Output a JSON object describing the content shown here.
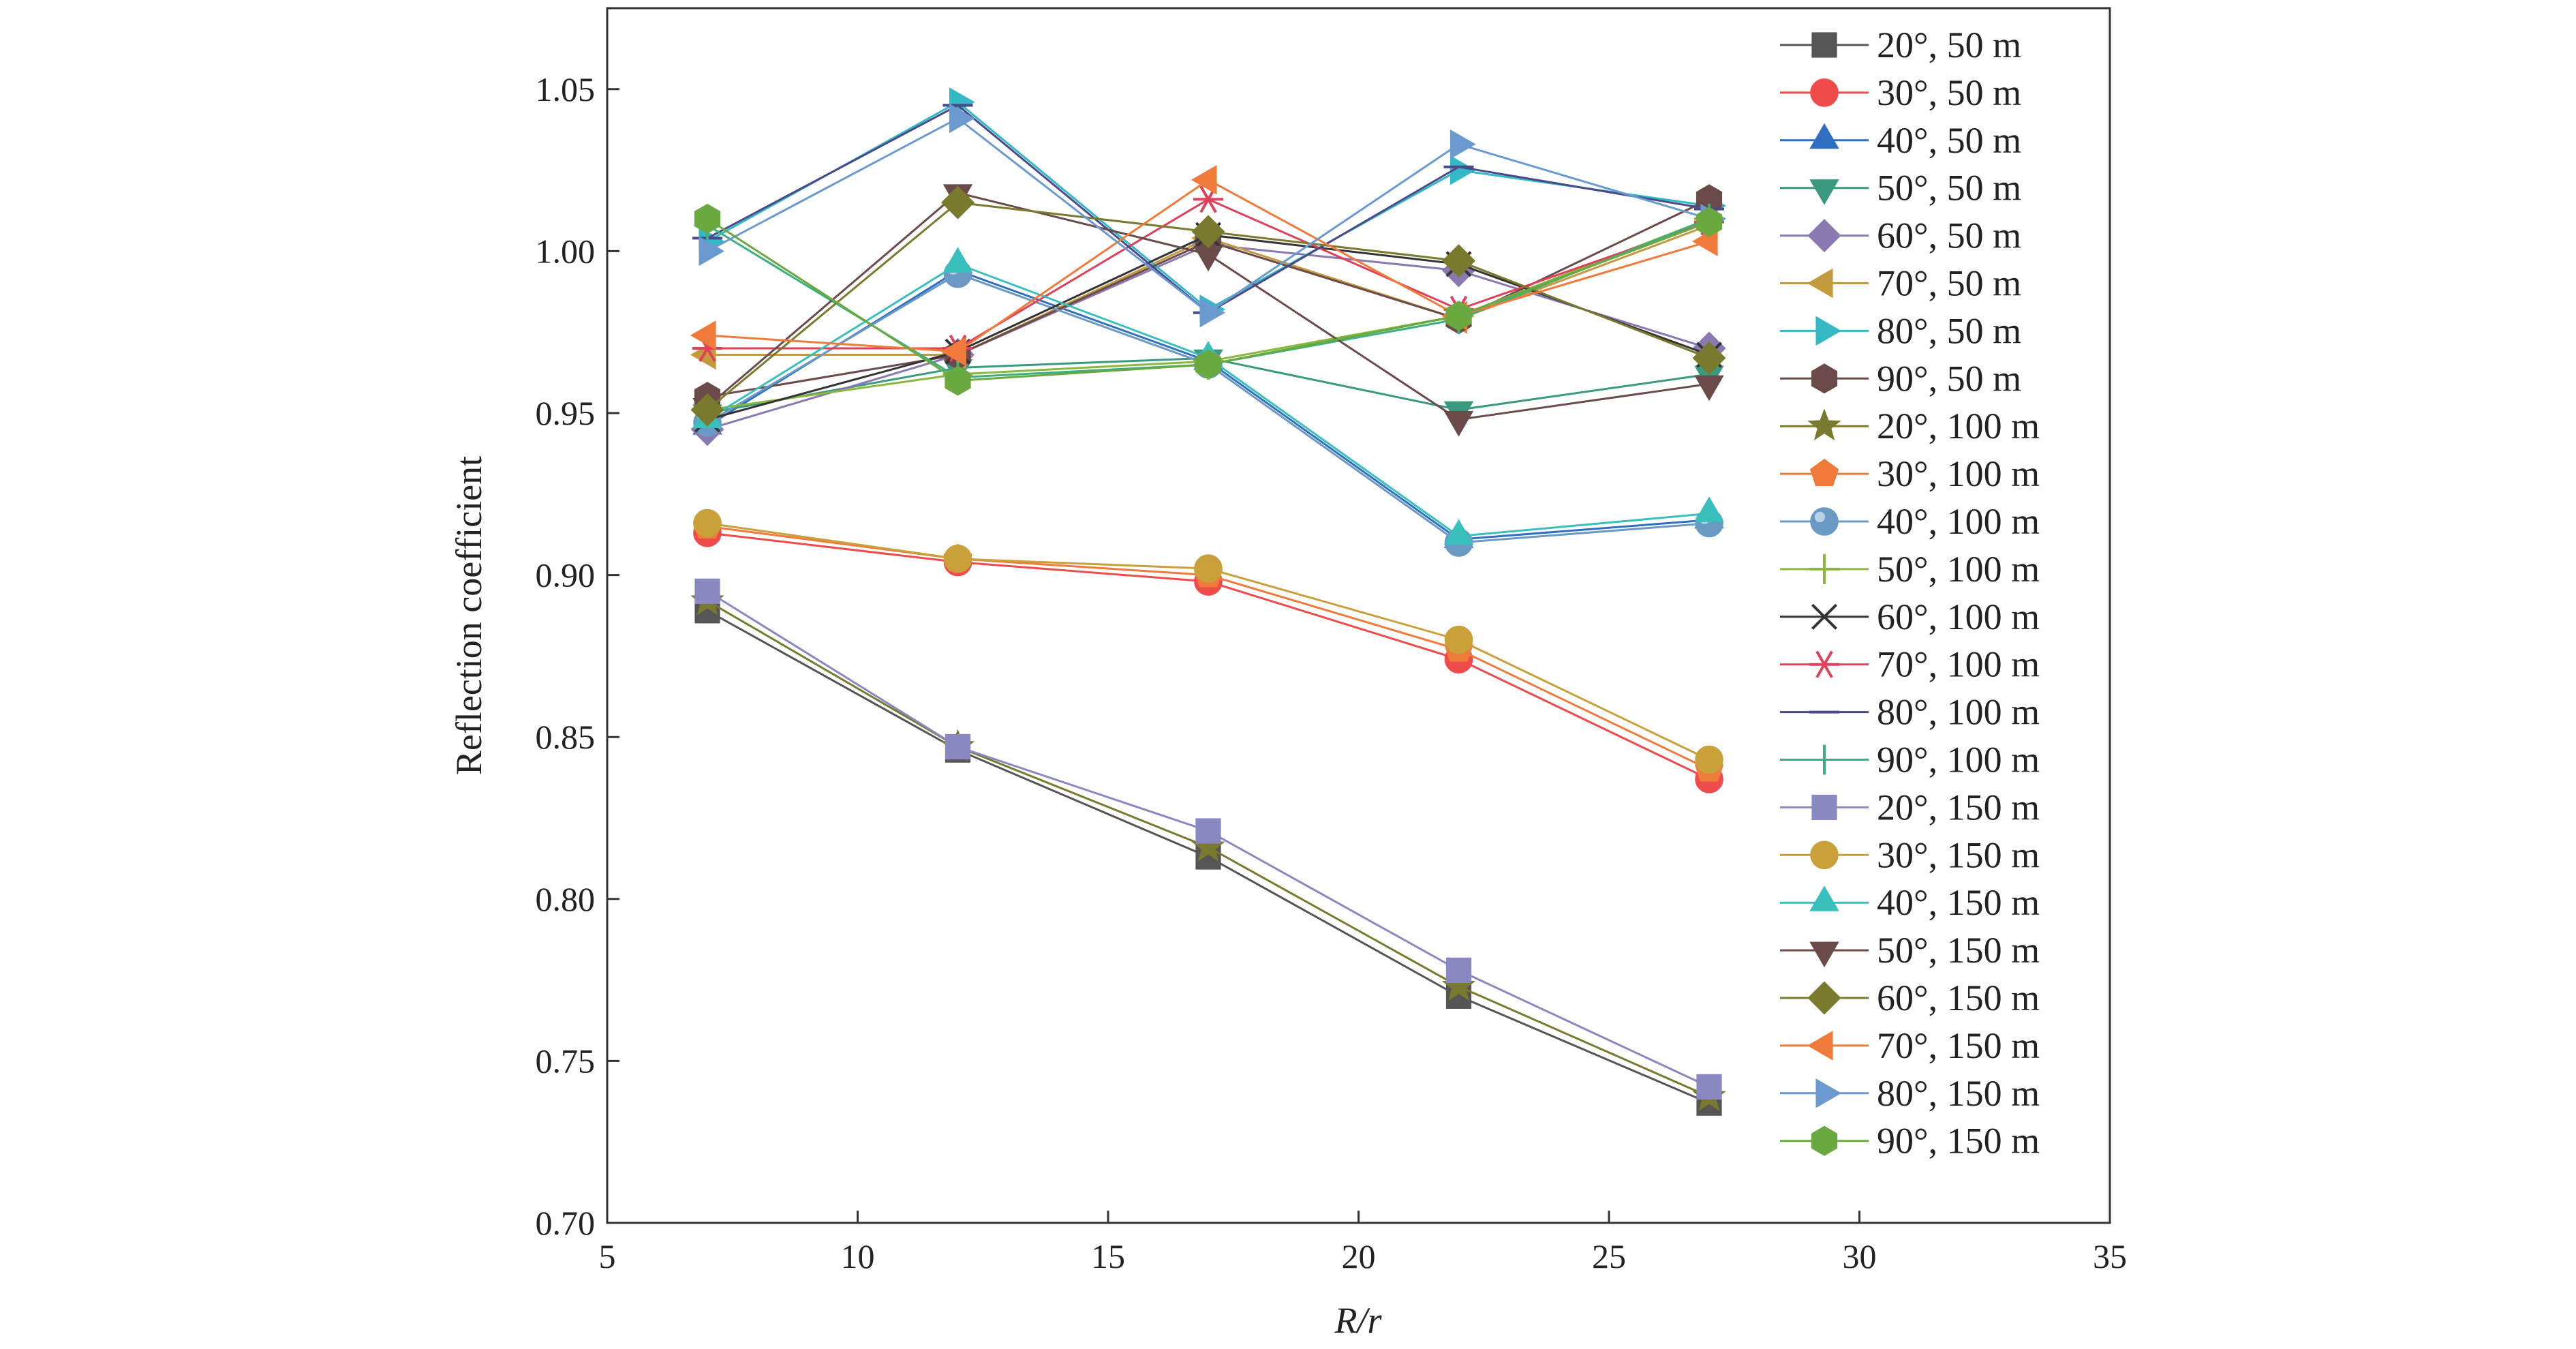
{
  "chart_data": {
    "type": "line",
    "title": "",
    "xlabel": "R/r",
    "ylabel": "Reflection coefficient",
    "xlim": [
      5,
      35
    ],
    "ylim": [
      0.7,
      1.075
    ],
    "x_ticks": [
      "5",
      "10",
      "15",
      "20",
      "25",
      "30",
      "35"
    ],
    "y_ticks": [
      "0.70",
      "0.75",
      "0.80",
      "0.85",
      "0.90",
      "0.95",
      "1.00",
      "1.05"
    ],
    "x_tick_values": [
      5,
      10,
      15,
      20,
      25,
      30,
      35
    ],
    "y_tick_values": [
      0.7,
      0.75,
      0.8,
      0.85,
      0.9,
      0.95,
      1.0,
      1.05
    ],
    "grid": false,
    "legend_position": "top-right",
    "x": [
      7,
      12,
      17,
      22,
      27
    ],
    "series": [
      {
        "name": "20°, 50 m",
        "marker": "square",
        "color": "#555555",
        "values": [
          0.889,
          0.846,
          0.813,
          0.77,
          0.737
        ]
      },
      {
        "name": "30°, 50 m",
        "marker": "circle",
        "color": "#ef4b4b",
        "values": [
          0.913,
          0.904,
          0.898,
          0.874,
          0.837
        ]
      },
      {
        "name": "40°, 50 m",
        "marker": "triangle-up",
        "color": "#2f6fc2",
        "values": [
          0.946,
          0.994,
          0.966,
          0.911,
          0.917
        ]
      },
      {
        "name": "50°, 50 m",
        "marker": "triangle-down",
        "color": "#3a9a80",
        "values": [
          0.95,
          0.964,
          0.967,
          0.951,
          0.962
        ]
      },
      {
        "name": "60°, 50 m",
        "marker": "diamond",
        "color": "#8a78b0",
        "values": [
          0.945,
          0.968,
          1.002,
          0.994,
          0.97
        ]
      },
      {
        "name": "70°, 50 m",
        "marker": "triangle-left",
        "color": "#c39a3e",
        "values": [
          0.968,
          0.968,
          1.004,
          0.979,
          1.008
        ]
      },
      {
        "name": "80°, 50 m",
        "marker": "triangle-right",
        "color": "#33b9c4",
        "values": [
          1.003,
          1.046,
          0.982,
          1.025,
          1.014
        ]
      },
      {
        "name": "90°, 50 m",
        "marker": "hexagon",
        "color": "#6b4a4a",
        "values": [
          0.955,
          0.968,
          1.003,
          0.979,
          1.016
        ]
      },
      {
        "name": "20°, 100 m",
        "marker": "star",
        "color": "#7a7a2e",
        "values": [
          0.892,
          0.847,
          0.816,
          0.773,
          0.739
        ]
      },
      {
        "name": "30°, 100 m",
        "marker": "pentagon",
        "color": "#f07a3a",
        "values": [
          0.915,
          0.905,
          0.9,
          0.877,
          0.84
        ]
      },
      {
        "name": "40°, 100 m",
        "marker": "sphere",
        "color": "#6a9ac4",
        "values": [
          0.947,
          0.993,
          0.965,
          0.91,
          0.916
        ]
      },
      {
        "name": "50°, 100 m",
        "marker": "plus",
        "color": "#8ab83e",
        "values": [
          0.951,
          0.962,
          0.966,
          0.98,
          1.01
        ]
      },
      {
        "name": "60°, 100 m",
        "marker": "x",
        "color": "#333333",
        "values": [
          0.948,
          0.969,
          1.005,
          0.996,
          0.968
        ]
      },
      {
        "name": "70°, 100 m",
        "marker": "asterisk",
        "color": "#e0405a",
        "values": [
          0.97,
          0.97,
          1.016,
          0.982,
          1.009
        ]
      },
      {
        "name": "80°, 100 m",
        "marker": "hline",
        "color": "#4a4a8a",
        "values": [
          1.004,
          1.045,
          0.981,
          1.026,
          1.013
        ]
      },
      {
        "name": "90°, 100 m",
        "marker": "vline",
        "color": "#3ab080",
        "values": [
          1.008,
          0.961,
          0.965,
          0.979,
          1.01
        ]
      },
      {
        "name": "20°, 150 m",
        "marker": "square",
        "color": "#8a88c0",
        "values": [
          0.895,
          0.847,
          0.821,
          0.778,
          0.742
        ]
      },
      {
        "name": "30°, 150 m",
        "marker": "circle",
        "color": "#c9a03a",
        "values": [
          0.916,
          0.905,
          0.902,
          0.88,
          0.843
        ]
      },
      {
        "name": "40°, 150 m",
        "marker": "triangle-up",
        "color": "#3ac0bc",
        "values": [
          0.948,
          0.996,
          0.967,
          0.912,
          0.919
        ]
      },
      {
        "name": "50°, 150 m",
        "marker": "triangle-down",
        "color": "#6b4a4a",
        "values": [
          0.952,
          1.018,
          0.999,
          0.948,
          0.959
        ]
      },
      {
        "name": "60°, 150 m",
        "marker": "diamond",
        "color": "#7a7a2e",
        "values": [
          0.951,
          1.015,
          1.006,
          0.997,
          0.967
        ]
      },
      {
        "name": "70°, 150 m",
        "marker": "triangle-left",
        "color": "#f07a3a",
        "values": [
          0.974,
          0.969,
          1.022,
          0.98,
          1.003
        ]
      },
      {
        "name": "80°, 150 m",
        "marker": "triangle-right",
        "color": "#6a9ad0",
        "values": [
          1.0,
          1.041,
          0.981,
          1.033,
          1.01
        ]
      },
      {
        "name": "90°, 150 m",
        "marker": "hexagon",
        "color": "#6aa840",
        "values": [
          1.01,
          0.96,
          0.965,
          0.98,
          1.009
        ]
      }
    ]
  }
}
